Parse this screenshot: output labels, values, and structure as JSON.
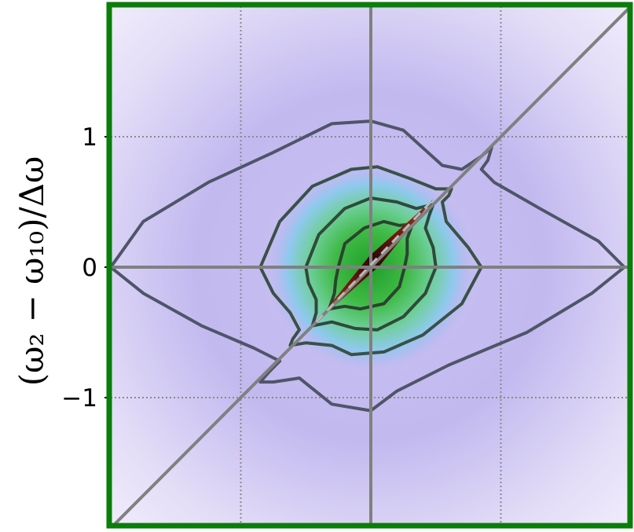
{
  "chart_data": {
    "type": "heatmap",
    "title": "",
    "xlabel": "",
    "ylabel": "(ω₂ − ω₁₀)/Δω",
    "xlim": [
      -2,
      2
    ],
    "ylim": [
      -2,
      2
    ],
    "yticks": [
      {
        "value": 1,
        "label": "1"
      },
      {
        "value": 0,
        "label": "0"
      },
      {
        "value": -1,
        "label": "−1"
      }
    ],
    "xticks_dotted_grid": [
      -1,
      1
    ],
    "grid": true,
    "frame_color": "#0a7d0a",
    "reference_lines": [
      {
        "name": "horizontal",
        "from": [
          -2,
          0
        ],
        "to": [
          2,
          0
        ]
      },
      {
        "name": "vertical",
        "from": [
          0,
          -2
        ],
        "to": [
          0,
          2
        ]
      },
      {
        "name": "diagonal",
        "from": [
          -2,
          -2
        ],
        "to": [
          2,
          2
        ]
      }
    ],
    "colormap": [
      "#f4f0fb",
      "#b7b2ee",
      "#7fc8e8",
      "#4fc06a",
      "#2fa030",
      "#7a1a10",
      "#1a0505"
    ],
    "contours": [
      {
        "level": 0.1,
        "points": [
          [
            -2.0,
            0
          ],
          [
            -1.75,
            0.35
          ],
          [
            -1.25,
            0.65
          ],
          [
            -0.75,
            0.88
          ],
          [
            -0.3,
            1.1
          ],
          [
            0.0,
            1.12
          ],
          [
            0.25,
            1.05
          ],
          [
            0.55,
            0.78
          ],
          [
            0.7,
            0.75
          ],
          [
            0.85,
            0.85
          ],
          [
            0.93,
            0.92
          ],
          [
            0.9,
            0.82
          ],
          [
            0.85,
            0.75
          ],
          [
            0.95,
            0.65
          ],
          [
            1.3,
            0.45
          ],
          [
            1.75,
            0.2
          ],
          [
            1.95,
            0
          ],
          [
            1.7,
            -0.2
          ],
          [
            1.2,
            -0.5
          ],
          [
            0.6,
            -0.75
          ],
          [
            0.2,
            -0.95
          ],
          [
            0.0,
            -1.1
          ],
          [
            -0.3,
            -1.05
          ],
          [
            -0.55,
            -0.85
          ],
          [
            -0.75,
            -0.88
          ],
          [
            -0.85,
            -0.88
          ],
          [
            -0.78,
            -0.8
          ],
          [
            -0.7,
            -0.72
          ],
          [
            -0.9,
            -0.62
          ],
          [
            -1.3,
            -0.45
          ],
          [
            -1.75,
            -0.2
          ],
          [
            -2.0,
            0
          ]
        ]
      },
      {
        "level": 0.3,
        "points": [
          [
            -0.85,
            0
          ],
          [
            -0.7,
            0.35
          ],
          [
            -0.45,
            0.62
          ],
          [
            -0.15,
            0.75
          ],
          [
            0.05,
            0.77
          ],
          [
            0.3,
            0.68
          ],
          [
            0.5,
            0.6
          ],
          [
            0.62,
            0.6
          ],
          [
            0.6,
            0.55
          ],
          [
            0.55,
            0.5
          ],
          [
            0.58,
            0.35
          ],
          [
            0.75,
            0.15
          ],
          [
            0.85,
            0
          ],
          [
            0.7,
            -0.28
          ],
          [
            0.4,
            -0.52
          ],
          [
            0.1,
            -0.65
          ],
          [
            -0.15,
            -0.67
          ],
          [
            -0.3,
            -0.6
          ],
          [
            -0.5,
            -0.58
          ],
          [
            -0.62,
            -0.6
          ],
          [
            -0.6,
            -0.55
          ],
          [
            -0.55,
            -0.48
          ],
          [
            -0.62,
            -0.35
          ],
          [
            -0.75,
            -0.2
          ],
          [
            -0.85,
            0
          ]
        ]
      },
      {
        "level": 0.5,
        "points": [
          [
            -0.5,
            0
          ],
          [
            -0.4,
            0.25
          ],
          [
            -0.2,
            0.45
          ],
          [
            0.0,
            0.53
          ],
          [
            0.2,
            0.5
          ],
          [
            0.35,
            0.45
          ],
          [
            0.48,
            0.48
          ],
          [
            0.45,
            0.4
          ],
          [
            0.42,
            0.3
          ],
          [
            0.48,
            0.15
          ],
          [
            0.5,
            0
          ],
          [
            0.42,
            -0.2
          ],
          [
            0.25,
            -0.38
          ],
          [
            0.05,
            -0.48
          ],
          [
            -0.12,
            -0.47
          ],
          [
            -0.3,
            -0.42
          ],
          [
            -0.45,
            -0.45
          ],
          [
            -0.42,
            -0.35
          ],
          [
            -0.42,
            -0.25
          ],
          [
            -0.48,
            -0.12
          ],
          [
            -0.5,
            0
          ]
        ]
      },
      {
        "level": 0.7,
        "points": [
          [
            -0.25,
            0
          ],
          [
            -0.2,
            0.18
          ],
          [
            -0.05,
            0.3
          ],
          [
            0.1,
            0.35
          ],
          [
            0.22,
            0.32
          ],
          [
            0.32,
            0.33
          ],
          [
            0.28,
            0.22
          ],
          [
            0.28,
            0.1
          ],
          [
            0.26,
            0
          ],
          [
            0.22,
            -0.15
          ],
          [
            0.1,
            -0.28
          ],
          [
            -0.08,
            -0.32
          ],
          [
            -0.2,
            -0.3
          ],
          [
            -0.32,
            -0.32
          ],
          [
            -0.28,
            -0.2
          ],
          [
            -0.27,
            -0.1
          ],
          [
            -0.25,
            0
          ]
        ]
      }
    ],
    "ridge": {
      "from": [
        -0.42,
        -0.42
      ],
      "to": [
        0.48,
        0.52
      ]
    }
  }
}
